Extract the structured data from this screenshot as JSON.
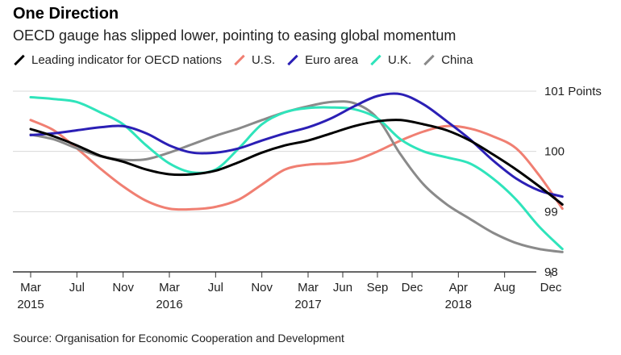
{
  "title": "One Direction",
  "subtitle": "OECD gauge has slipped lower, pointing to easing global momentum",
  "source": "Source: Organisation for Economic Cooperation and Development",
  "chart_data": {
    "type": "line",
    "ylim": [
      98,
      101
    ],
    "y_ticks": [
      {
        "value": 101,
        "label": "101 Points"
      },
      {
        "value": 100,
        "label": "100"
      },
      {
        "value": 99,
        "label": "99"
      },
      {
        "value": 98,
        "label": "98"
      }
    ],
    "x_ticks": [
      {
        "month": 0,
        "label": "Mar",
        "year": "2015"
      },
      {
        "month": 4,
        "label": "Jul",
        "year": ""
      },
      {
        "month": 8,
        "label": "Nov",
        "year": ""
      },
      {
        "month": 12,
        "label": "Mar",
        "year": "2016"
      },
      {
        "month": 16,
        "label": "Jul",
        "year": ""
      },
      {
        "month": 20,
        "label": "Nov",
        "year": ""
      },
      {
        "month": 24,
        "label": "Mar",
        "year": "2017"
      },
      {
        "month": 27,
        "label": "Jun",
        "year": ""
      },
      {
        "month": 30,
        "label": "Sep",
        "year": ""
      },
      {
        "month": 33,
        "label": "Dec",
        "year": ""
      },
      {
        "month": 37,
        "label": "Apr",
        "year": "2018"
      },
      {
        "month": 41,
        "label": "Aug",
        "year": ""
      },
      {
        "month": 45,
        "label": "Dec",
        "year": ""
      }
    ],
    "grid": true,
    "legend_position": "top",
    "series": [
      {
        "name": "Leading indicator for OECD nations",
        "color": "#000000",
        "x": [
          0,
          2,
          4,
          6,
          8,
          10,
          12,
          14,
          16,
          18,
          20,
          22,
          24,
          26,
          28,
          30,
          32,
          34,
          36,
          38,
          40,
          42,
          44,
          46
        ],
        "y": [
          100.37,
          100.25,
          100.1,
          99.93,
          99.83,
          99.7,
          99.62,
          99.62,
          99.68,
          99.82,
          99.98,
          100.1,
          100.18,
          100.3,
          100.42,
          100.5,
          100.52,
          100.45,
          100.35,
          100.18,
          99.95,
          99.7,
          99.42,
          99.12
        ]
      },
      {
        "name": "U.S.",
        "color": "#f07f72",
        "x": [
          0,
          2,
          4,
          6,
          8,
          10,
          12,
          14,
          16,
          18,
          20,
          22,
          24,
          26,
          28,
          30,
          32,
          34,
          36,
          38,
          40,
          42,
          44,
          46
        ],
        "y": [
          100.52,
          100.35,
          100.05,
          99.72,
          99.42,
          99.18,
          99.05,
          99.04,
          99.08,
          99.2,
          99.45,
          99.7,
          99.78,
          99.8,
          99.85,
          100.0,
          100.18,
          100.33,
          100.42,
          100.38,
          100.25,
          100.05,
          99.6,
          99.05
        ]
      },
      {
        "name": "Euro area",
        "color": "#2b1fb5",
        "x": [
          0,
          2,
          4,
          6,
          8,
          10,
          12,
          14,
          16,
          18,
          20,
          22,
          24,
          26,
          28,
          30,
          32,
          34,
          36,
          38,
          40,
          42,
          44,
          46
        ],
        "y": [
          100.27,
          100.3,
          100.35,
          100.4,
          100.42,
          100.3,
          100.1,
          99.98,
          99.98,
          100.05,
          100.18,
          100.3,
          100.4,
          100.55,
          100.75,
          100.92,
          100.95,
          100.78,
          100.5,
          100.2,
          99.85,
          99.55,
          99.35,
          99.25
        ]
      },
      {
        "name": "U.K.",
        "color": "#2fe4bb",
        "x": [
          0,
          2,
          4,
          6,
          8,
          10,
          12,
          14,
          16,
          18,
          20,
          22,
          24,
          26,
          28,
          30,
          32,
          34,
          36,
          38,
          40,
          42,
          44,
          46
        ],
        "y": [
          100.9,
          100.87,
          100.82,
          100.65,
          100.45,
          100.1,
          99.8,
          99.65,
          99.7,
          100.05,
          100.45,
          100.65,
          100.72,
          100.73,
          100.7,
          100.55,
          100.2,
          100.0,
          99.9,
          99.8,
          99.55,
          99.2,
          98.75,
          98.38
        ]
      },
      {
        "name": "China",
        "color": "#8a8a8a",
        "x": [
          0,
          2,
          4,
          6,
          8,
          10,
          12,
          14,
          16,
          18,
          20,
          22,
          24,
          26,
          28,
          30,
          32,
          34,
          36,
          38,
          40,
          42,
          44,
          46
        ],
        "y": [
          100.28,
          100.2,
          100.05,
          99.92,
          99.86,
          99.87,
          99.98,
          100.12,
          100.26,
          100.38,
          100.52,
          100.65,
          100.75,
          100.82,
          100.8,
          100.55,
          99.95,
          99.45,
          99.12,
          98.88,
          98.65,
          98.48,
          98.38,
          98.33
        ]
      }
    ]
  }
}
